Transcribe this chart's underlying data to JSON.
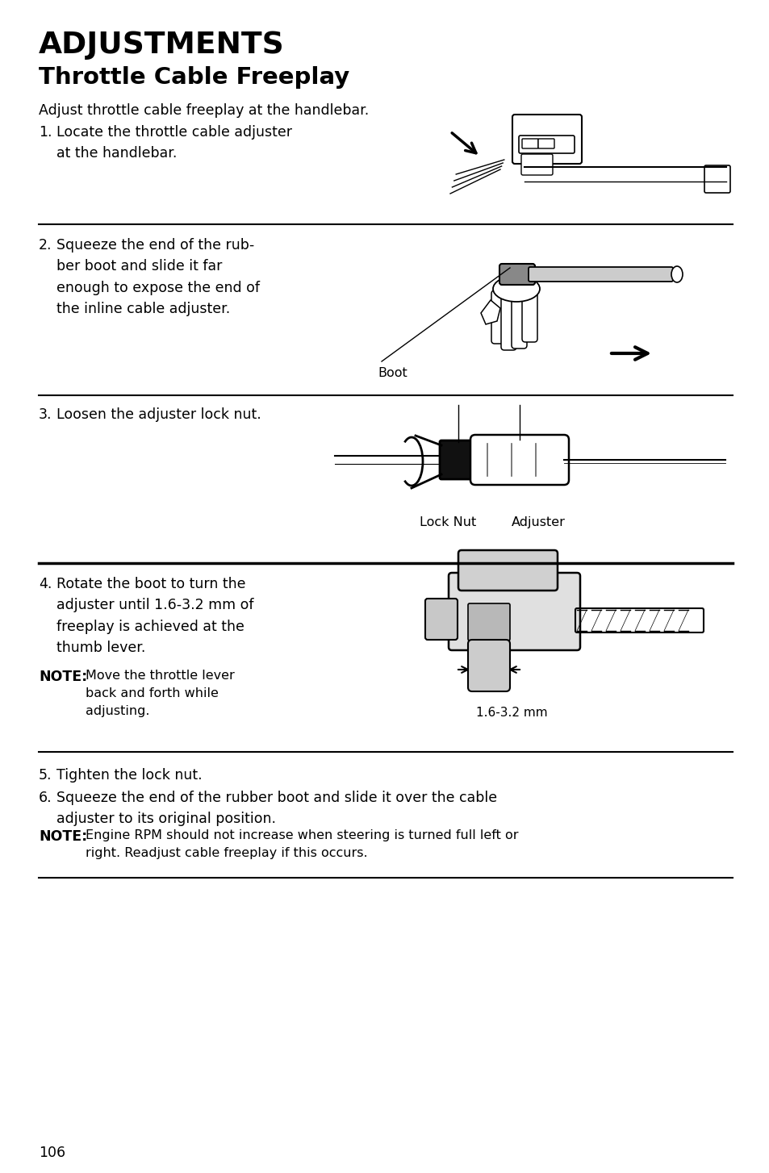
{
  "title_line1": "ADJUSTMENTS",
  "title_line2": "Throttle Cable Freeplay",
  "intro_text": "Adjust throttle cable freeplay at the handlebar.",
  "step1_num": "1.",
  "step1_text": "Locate the throttle cable adjuster\nat the handlebar.",
  "step2_num": "2.",
  "step2_text": "Squeeze the end of the rub-\nber boot and slide it far\nenough to expose the end of\nthe inline cable adjuster.",
  "step2_label": "Boot",
  "step3_num": "3.",
  "step3_text": "Loosen the adjuster lock nut.",
  "step3_label1": "Lock Nut",
  "step3_label2": "Adjuster",
  "step4_num": "4.",
  "step4_text": "Rotate the boot to turn the\nadjuster until 1.6-3.2 mm of\nfreeplay is achieved at the\nthumb lever.",
  "note4_label": "NOTE:",
  "note4_text": "Move the throttle lever\nback and forth while\nadjusting.",
  "step4_measurement": "1.6-3.2 mm",
  "step5_num": "5.",
  "step5_text": "Tighten the lock nut.",
  "step6_num": "6.",
  "step6_text": "Squeeze the end of the rubber boot and slide it over the cable\nadjuster to its original position.",
  "note_final_label": "NOTE:",
  "note_final_text": "Engine RPM should not increase when steering is turned full left or\nright. Readjust cable freeplay if this occurs.",
  "page_num": "106",
  "bg_color": "#ffffff",
  "text_color": "#000000"
}
